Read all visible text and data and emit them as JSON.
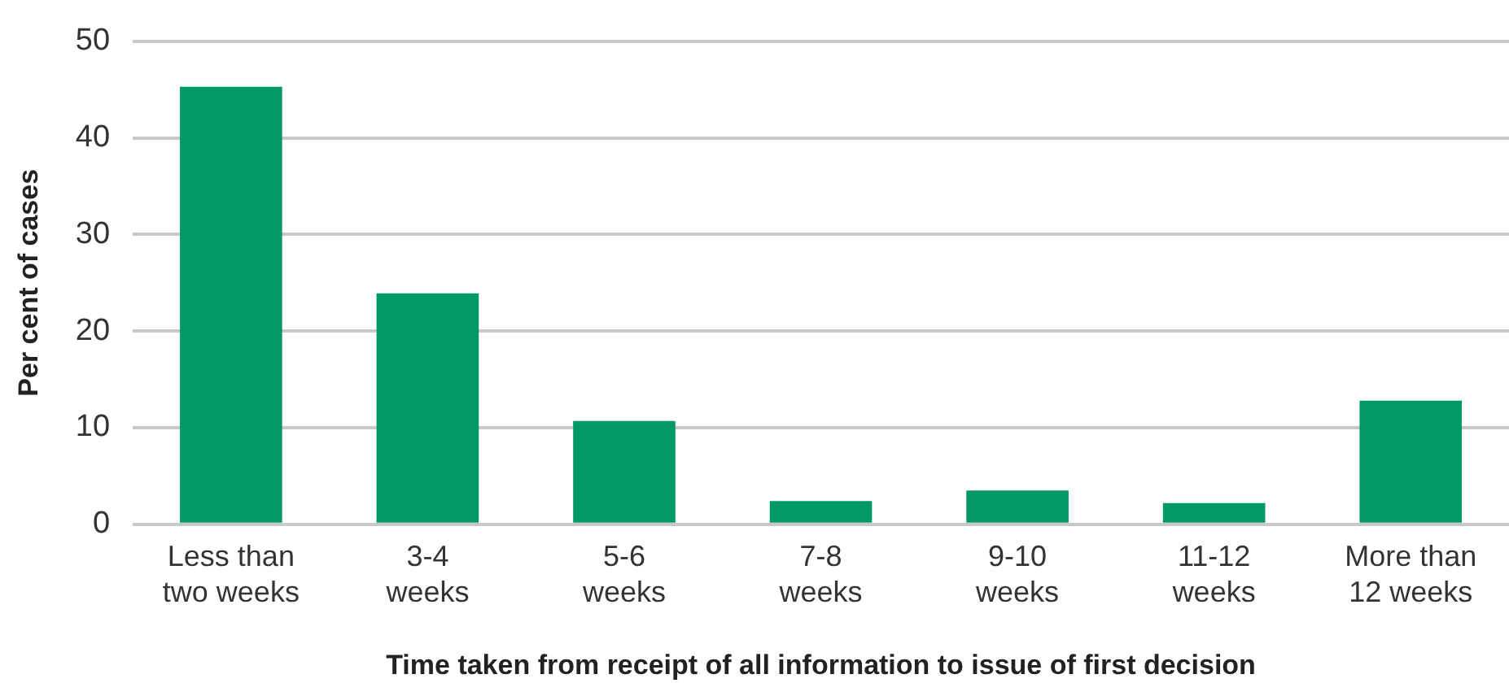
{
  "chart_data": {
    "type": "bar",
    "categories": [
      "Less than\ntwo weeks",
      "3-4\nweeks",
      "5-6\nweeks",
      "7-8\nweeks",
      "9-10\nweeks",
      "11-12\nweeks",
      "More than\n12 weeks"
    ],
    "values": [
      45.3,
      23.9,
      10.7,
      2.4,
      3.5,
      2.2,
      12.8
    ],
    "color": "#009966",
    "xlabel": "Time taken from receipt of all information to issue of first decision",
    "ylabel": "Per cent of cases",
    "ylim": [
      0,
      50
    ],
    "yticks": [
      0,
      10,
      20,
      30,
      40,
      50
    ],
    "grid": "y",
    "legend": false
  }
}
